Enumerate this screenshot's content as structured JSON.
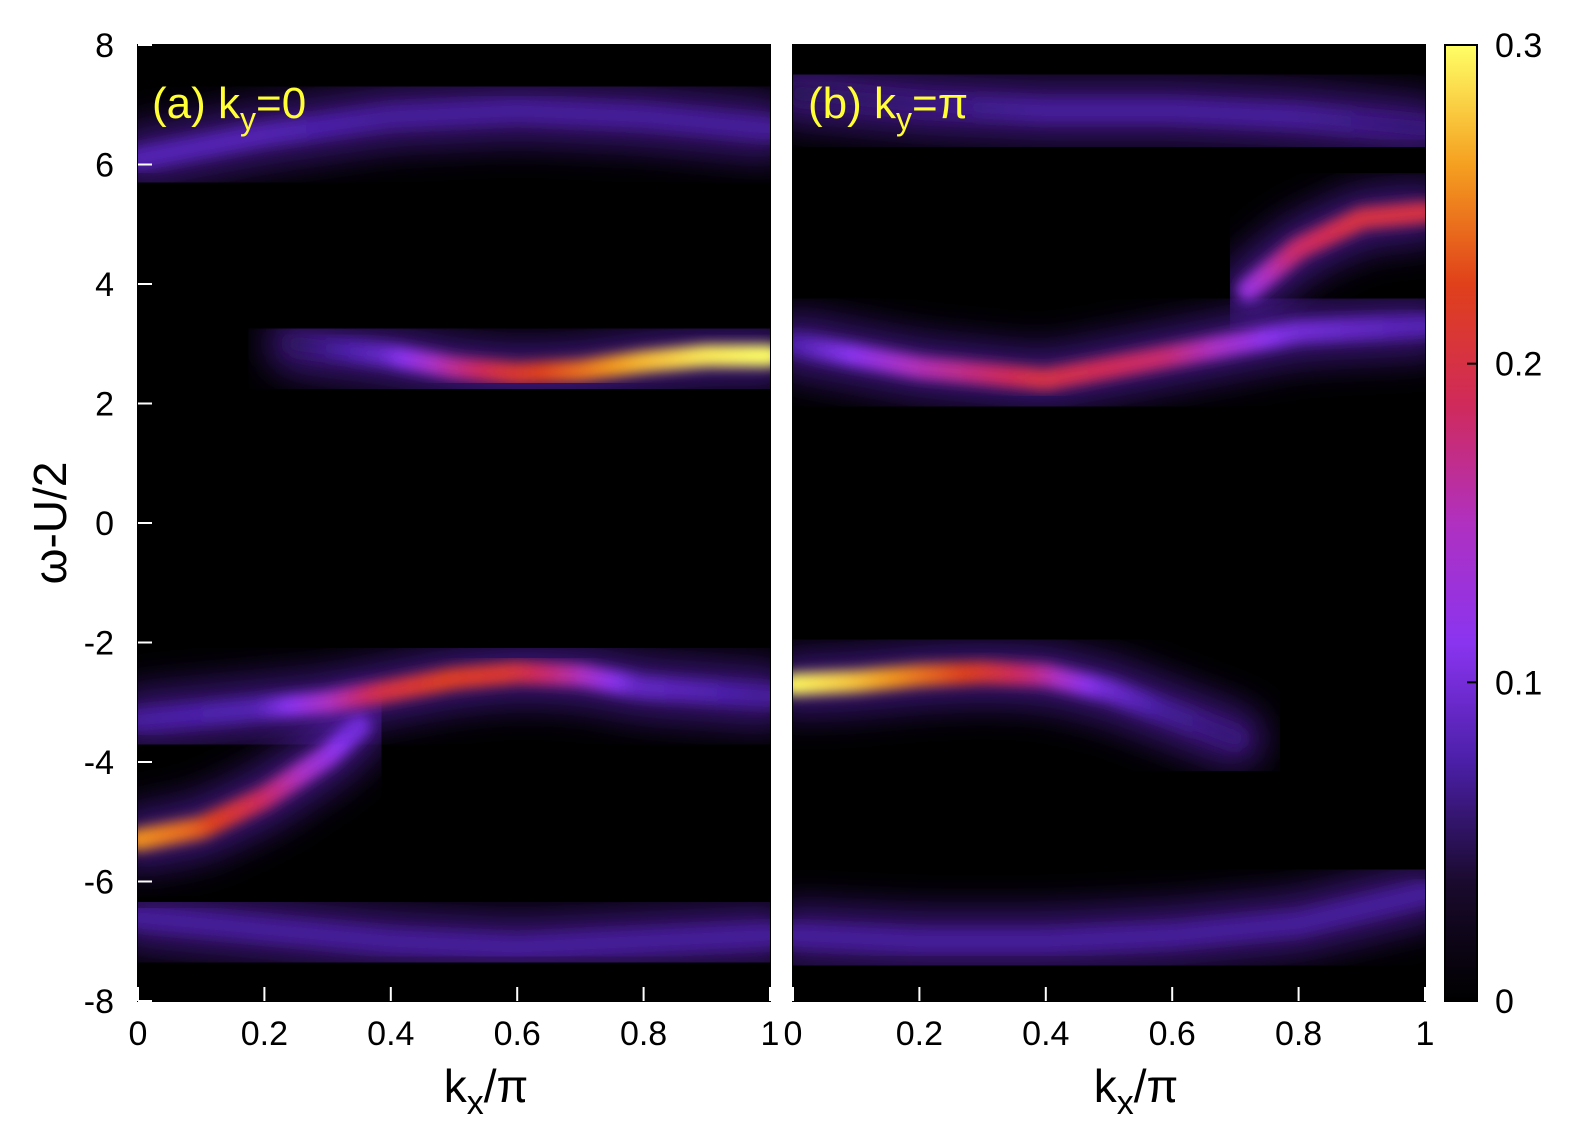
{
  "chart_data": [
    {
      "type": "heatmap",
      "panel_label": "(a) k",
      "panel_label_sub": "y",
      "panel_label_tail": "=0",
      "xlabel": "k",
      "xlabel_sub": "x",
      "xlabel_tail": "/π",
      "ylabel": "ω-U/2",
      "xlim": [
        0,
        1
      ],
      "ylim": [
        -8,
        8
      ],
      "xticks": [
        "0",
        "0.2",
        "0.4",
        "0.6",
        "0.8",
        "1"
      ],
      "yticks": [
        "8",
        "6",
        "4",
        "2",
        "0",
        "-2",
        "-4",
        "-6",
        "-8"
      ],
      "bands": [
        {
          "x": [
            0,
            0.2,
            0.4,
            0.6,
            0.8,
            1
          ],
          "y": [
            6.1,
            6.5,
            6.8,
            6.9,
            6.8,
            6.6
          ],
          "intensity": [
            0.08,
            0.08,
            0.07,
            0.07,
            0.07,
            0.07
          ]
        },
        {
          "x": [
            0.25,
            0.4,
            0.5,
            0.6,
            0.7,
            0.8,
            0.9,
            1
          ],
          "y": [
            3.0,
            2.8,
            2.6,
            2.5,
            2.55,
            2.7,
            2.8,
            2.8
          ],
          "intensity": [
            0.05,
            0.09,
            0.16,
            0.21,
            0.24,
            0.27,
            0.29,
            0.3
          ]
        },
        {
          "x": [
            0,
            0.1,
            0.2,
            0.3,
            0.35
          ],
          "y": [
            -5.3,
            -5.1,
            -4.6,
            -3.9,
            -3.4
          ],
          "intensity": [
            0.26,
            0.24,
            0.19,
            0.13,
            0.1
          ]
        },
        {
          "x": [
            0,
            0.2,
            0.3,
            0.4,
            0.5,
            0.6,
            0.7,
            0.8,
            1
          ],
          "y": [
            -3.3,
            -3.1,
            -3.0,
            -2.8,
            -2.6,
            -2.5,
            -2.55,
            -2.75,
            -2.9
          ],
          "intensity": [
            0.07,
            0.08,
            0.14,
            0.2,
            0.22,
            0.21,
            0.16,
            0.09,
            0.07
          ]
        },
        {
          "x": [
            0,
            0.2,
            0.4,
            0.6,
            0.8,
            1
          ],
          "y": [
            -6.6,
            -6.8,
            -7.0,
            -7.1,
            -7.0,
            -6.9
          ],
          "intensity": [
            0.07,
            0.07,
            0.07,
            0.07,
            0.07,
            0.07
          ]
        }
      ]
    },
    {
      "type": "heatmap",
      "panel_label": "(b) k",
      "panel_label_sub": "y",
      "panel_label_tail": "=π",
      "xlabel": "k",
      "xlabel_sub": "x",
      "xlabel_tail": "/π",
      "ylabel": "",
      "xlim": [
        0,
        1
      ],
      "ylim": [
        -8,
        8
      ],
      "xticks": [
        "0",
        "0.2",
        "0.4",
        "0.6",
        "0.8",
        "1"
      ],
      "bands": [
        {
          "x": [
            0,
            0.2,
            0.4,
            0.6,
            0.8,
            1
          ],
          "y": [
            7.2,
            7.0,
            6.9,
            6.9,
            6.8,
            6.6
          ],
          "intensity": [
            0.05,
            0.06,
            0.07,
            0.07,
            0.07,
            0.06
          ]
        },
        {
          "x": [
            0.72,
            0.8,
            0.9,
            1
          ],
          "y": [
            3.9,
            4.6,
            5.1,
            5.2
          ],
          "intensity": [
            0.12,
            0.18,
            0.2,
            0.2
          ]
        },
        {
          "x": [
            0,
            0.2,
            0.4,
            0.6,
            0.8,
            1
          ],
          "y": [
            3.0,
            2.6,
            2.4,
            2.8,
            3.2,
            3.3
          ],
          "intensity": [
            0.07,
            0.15,
            0.2,
            0.18,
            0.1,
            0.08
          ]
        },
        {
          "x": [
            0,
            0.1,
            0.2,
            0.3,
            0.4,
            0.5,
            0.6,
            0.7
          ],
          "y": [
            -2.7,
            -2.65,
            -2.55,
            -2.5,
            -2.55,
            -2.8,
            -3.2,
            -3.6
          ],
          "intensity": [
            0.3,
            0.28,
            0.25,
            0.22,
            0.17,
            0.1,
            0.07,
            0.06
          ]
        },
        {
          "x": [
            0,
            0.2,
            0.4,
            0.6,
            0.8,
            1
          ],
          "y": [
            -6.9,
            -7.0,
            -7.0,
            -6.9,
            -6.7,
            -6.2
          ],
          "intensity": [
            0.07,
            0.07,
            0.07,
            0.07,
            0.07,
            0.07
          ]
        }
      ]
    }
  ],
  "colorbar": {
    "range": [
      0,
      0.3
    ],
    "ticks": [
      "0.3",
      "0.2",
      "0.1",
      "0"
    ],
    "colors": [
      "#000000",
      "#1a0a2e",
      "#4b1fa8",
      "#8a34f0",
      "#b030c0",
      "#d02a5a",
      "#e0401a",
      "#f5a020",
      "#ffff66"
    ]
  }
}
